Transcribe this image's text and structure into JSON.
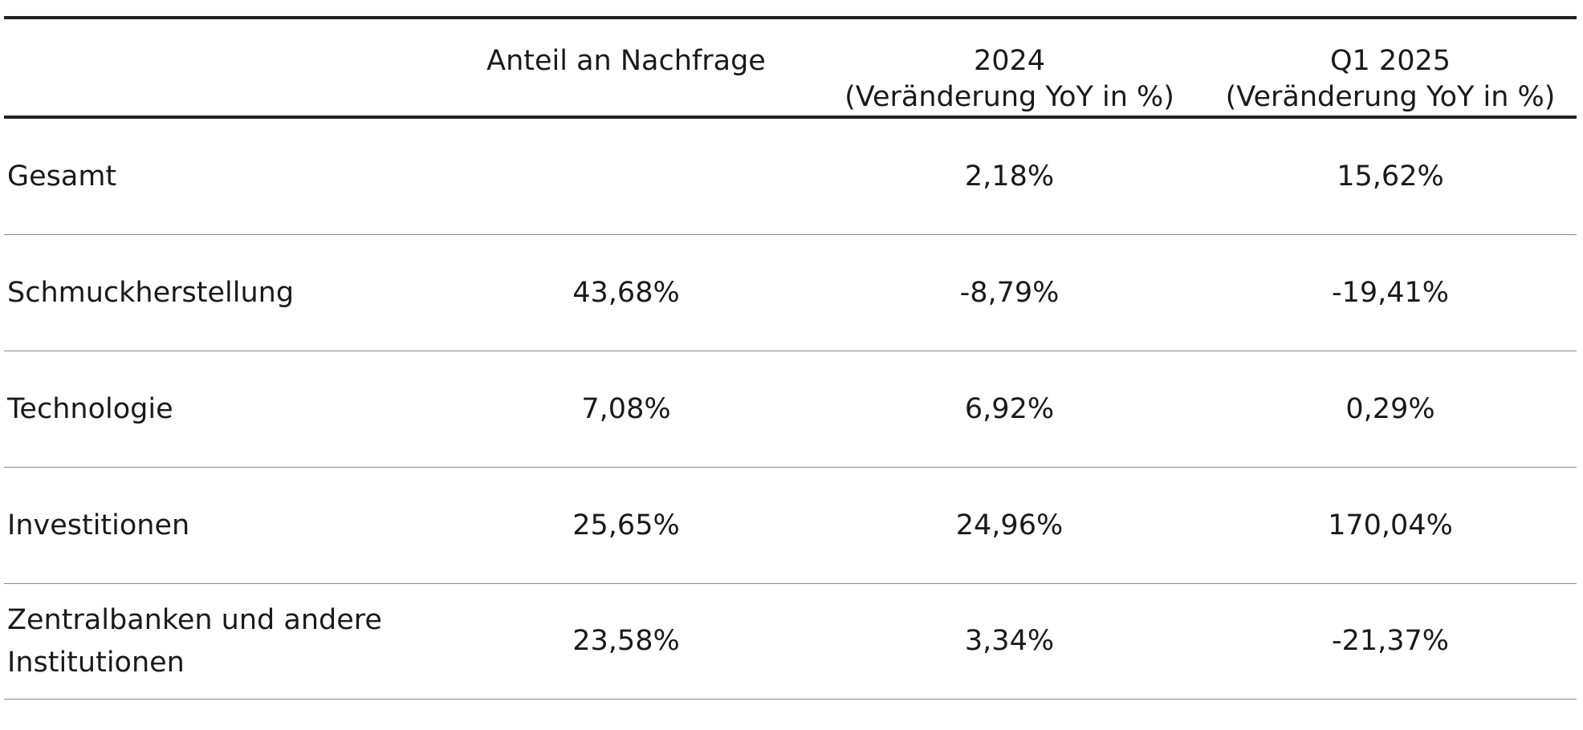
{
  "table": {
    "headers": {
      "col1": "",
      "col2": [
        "Anteil an Nachfrage"
      ],
      "col3": [
        "2024",
        "(Veränderung YoY in %)"
      ],
      "col4": [
        "Q1 2025",
        "(Veränderung YoY in %)"
      ]
    },
    "rows": [
      {
        "label": [
          "Gesamt"
        ],
        "share": "",
        "y2024": "2,18%",
        "q1_2025": "15,62%"
      },
      {
        "label": [
          "Schmuckherstellung"
        ],
        "share": "43,68%",
        "y2024": "-8,79%",
        "q1_2025": "-19,41%"
      },
      {
        "label": [
          "Technologie"
        ],
        "share": "7,08%",
        "y2024": "6,92%",
        "q1_2025": "0,29%"
      },
      {
        "label": [
          "Investitionen"
        ],
        "share": "25,65%",
        "y2024": "24,96%",
        "q1_2025": "170,04%"
      },
      {
        "label": [
          "Zentralbanken und andere",
          "Institutionen"
        ],
        "share": "23,58%",
        "y2024": "3,34%",
        "q1_2025": "-21,37%"
      }
    ]
  }
}
